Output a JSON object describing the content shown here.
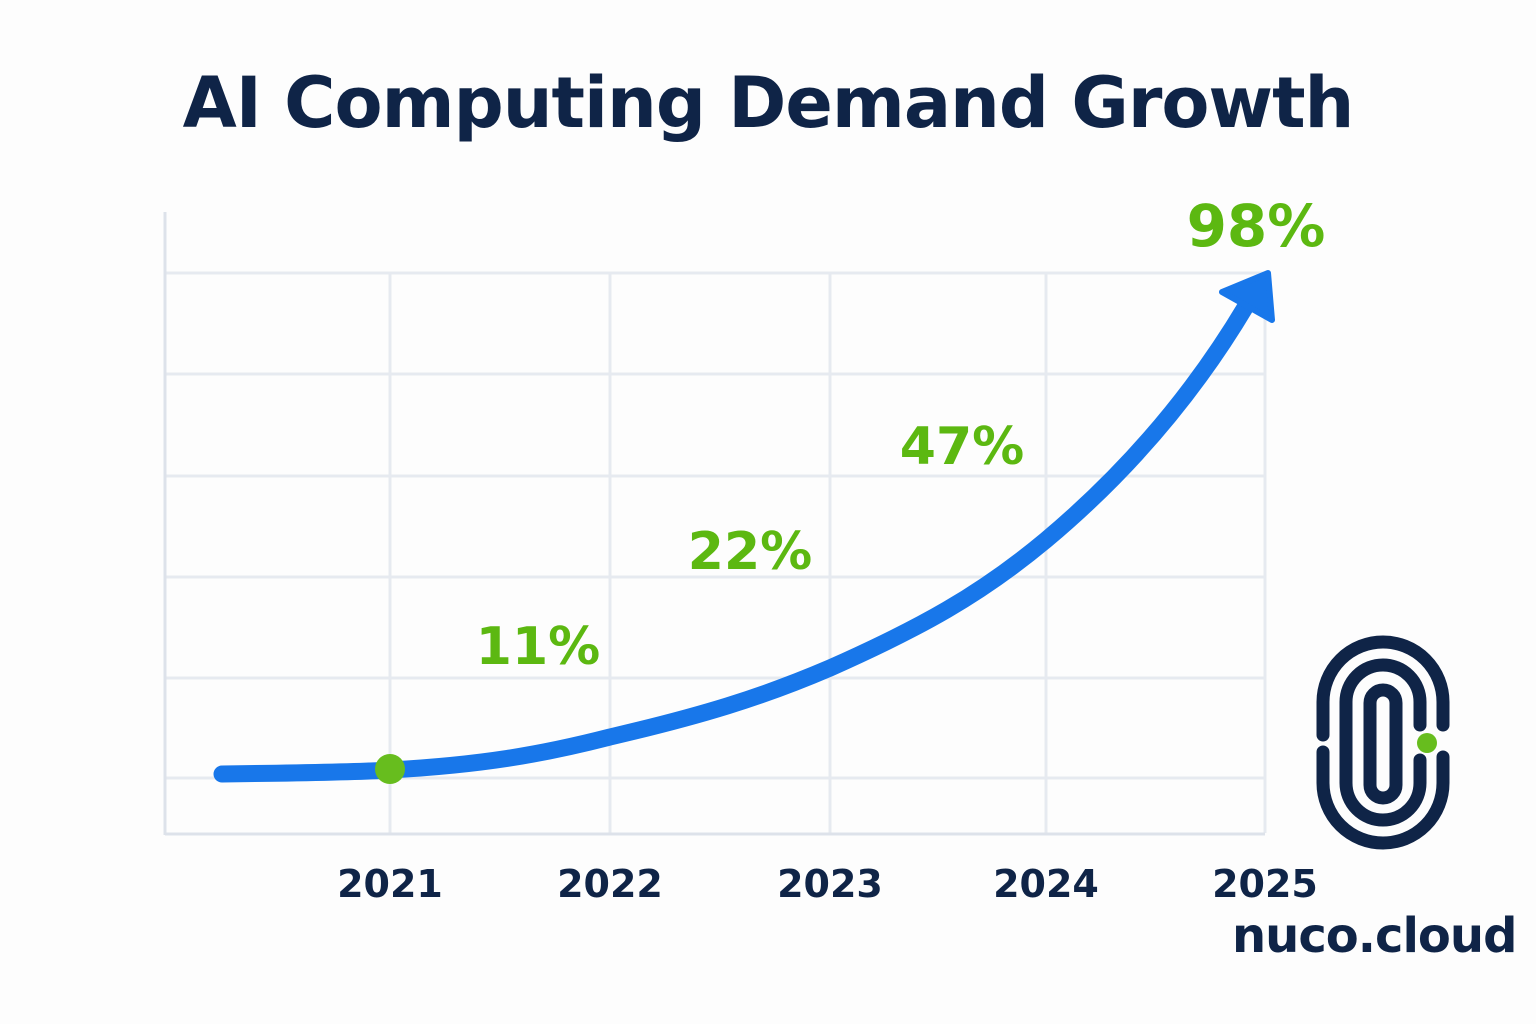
{
  "chart_data": {
    "type": "line",
    "title": "AI Computing Demand Growth",
    "categories": [
      "2021",
      "2022",
      "2023",
      "2024",
      "2025"
    ],
    "data_labels": [
      {
        "year": "2022",
        "label": "11%",
        "value": 11
      },
      {
        "year": "2023",
        "label": "22%",
        "value": 22
      },
      {
        "year": "2024",
        "label": "47%",
        "value": 47
      },
      {
        "year": "2025",
        "label": "98%",
        "value": 98
      }
    ],
    "highlight_point": "2021",
    "grid": true,
    "xlabel": "",
    "ylabel": "",
    "colors": {
      "line": "#1877ea",
      "labels": "#5cb811",
      "highlight": "#67bd1e",
      "text": "#0f2447",
      "grid": "#e6eaf0"
    }
  },
  "brand": {
    "name": "nuco.cloud",
    "logo": "nuco-cloud-logo"
  }
}
